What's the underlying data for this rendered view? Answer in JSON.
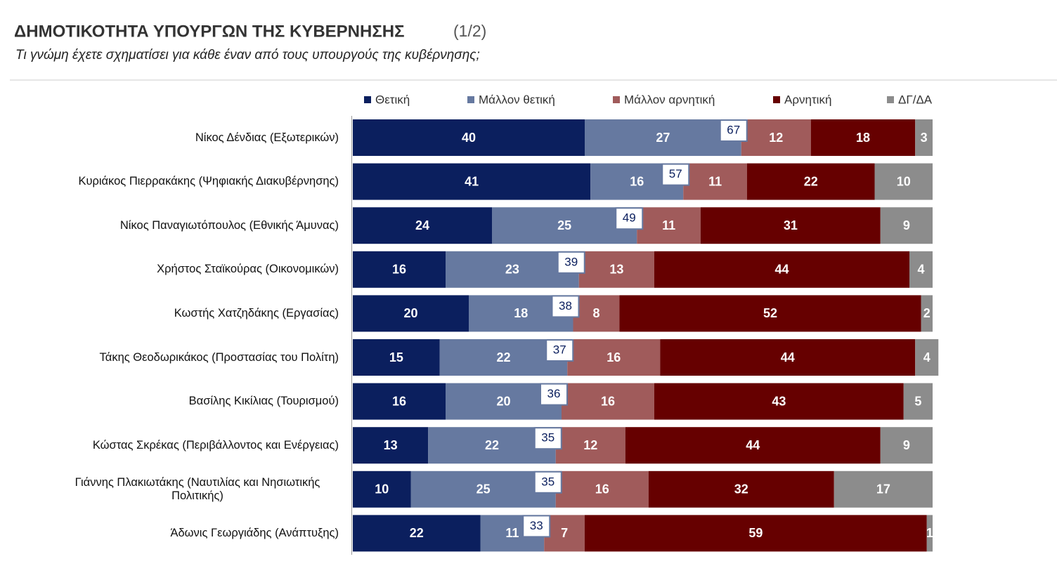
{
  "chart_data": {
    "type": "bar",
    "orientation": "horizontal",
    "stacked": true,
    "title": "ΔΗΜΟΤΙΚΟΤΗΤΑ ΥΠΟΥΡΓΩΝ ΤΗΣ ΚΥΒΕΡΝΗΣΗΣ",
    "page_indicator": "(1/2)",
    "subtitle": "Τι γνώμη έχετε σχηματίσει για κάθε έναν από τους υπουργούς της κυβέρνησης;",
    "categories": [
      "Νίκος Δένδιας (Εξωτερικών)",
      "Κυριάκος Πιερρακάκης (Ψηφιακής Διακυβέρνησης)",
      "Νίκος Παναγιωτόπουλος (Εθνικής Άμυνας)",
      "Χρήστος Σταϊκούρας (Οικονομικών)",
      "Κωστής Χατζηδάκης (Εργασίας)",
      "Τάκης Θεοδωρικάκος (Προστασίας του Πολίτη)",
      "Βασίλης Κικίλιας (Τουρισμού)",
      "Κώστας Σκρέκας (Περιβάλλοντος και Ενέργειας)",
      "Γιάννης Πλακιωτάκης (Ναυτιλίας και Νησιωτικής Πολιτικής)",
      "Άδωνις Γεωργιάδης (Ανάπτυξης)"
    ],
    "series": [
      {
        "name": "Θετική",
        "color": "#0b1f5e",
        "values": [
          40,
          41,
          24,
          16,
          20,
          15,
          16,
          13,
          10,
          22
        ]
      },
      {
        "name": "Μάλλον θετική",
        "color": "#6679a0",
        "values": [
          27,
          16,
          25,
          23,
          18,
          22,
          20,
          22,
          25,
          11
        ]
      },
      {
        "name": "Μάλλον αρνητική",
        "color": "#a05b5b",
        "values": [
          12,
          11,
          11,
          13,
          8,
          16,
          16,
          12,
          16,
          7
        ]
      },
      {
        "name": "Αρνητική",
        "color": "#660000",
        "values": [
          18,
          22,
          31,
          44,
          52,
          44,
          43,
          44,
          32,
          59
        ]
      },
      {
        "name": "ΔΓ/ΔΑ",
        "color": "#8c8c8c",
        "values": [
          3,
          10,
          9,
          4,
          2,
          4,
          5,
          9,
          17,
          1
        ]
      }
    ],
    "positive_totals": [
      67,
      57,
      49,
      39,
      38,
      37,
      36,
      35,
      35,
      33
    ],
    "xlim": [
      0,
      100
    ],
    "legend": "top"
  }
}
